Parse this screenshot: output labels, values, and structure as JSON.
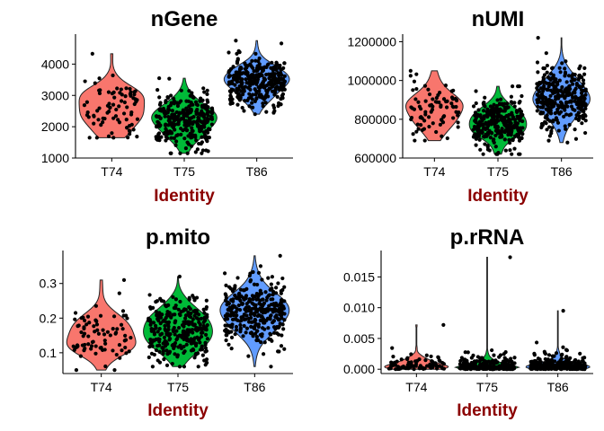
{
  "style": {
    "xlabel_color": "#8b0000",
    "point_color": "#000000"
  },
  "chart_data": [
    {
      "type": "violin",
      "title": "nGene",
      "xlabel": "Identity",
      "ylabel": "",
      "categories": [
        "T74",
        "T75",
        "T86"
      ],
      "colors": [
        "#f8766d",
        "#00ba38",
        "#619cff"
      ],
      "yticks": [
        1000,
        2000,
        3000,
        4000
      ],
      "ytick_labels": [
        "1000",
        "2000",
        "3000",
        "4000"
      ],
      "ylim": [
        1000,
        4900
      ],
      "groups": [
        {
          "name": "T74",
          "n": 80,
          "center": 2600,
          "sd": 500,
          "min": 1650,
          "max": 4330
        },
        {
          "name": "T75",
          "n": 300,
          "center": 2200,
          "sd": 450,
          "min": 1150,
          "max": 3550
        },
        {
          "name": "T86",
          "n": 320,
          "center": 3450,
          "sd": 400,
          "min": 2400,
          "max": 4750
        }
      ]
    },
    {
      "type": "violin",
      "title": "nUMI",
      "xlabel": "Identity",
      "ylabel": "",
      "categories": [
        "T74",
        "T75",
        "T86"
      ],
      "colors": [
        "#f8766d",
        "#00ba38",
        "#619cff"
      ],
      "yticks": [
        600000,
        800000,
        1000000,
        1200000
      ],
      "ytick_labels": [
        "600000",
        "800000",
        "1000000",
        "1200000"
      ],
      "ylim": [
        600000,
        1230000
      ],
      "groups": [
        {
          "name": "T74",
          "n": 80,
          "center": 840000,
          "sd": 80000,
          "min": 690000,
          "max": 1050000
        },
        {
          "name": "T75",
          "n": 300,
          "center": 780000,
          "sd": 65000,
          "min": 620000,
          "max": 970000
        },
        {
          "name": "T86",
          "n": 320,
          "center": 920000,
          "sd": 85000,
          "min": 680000,
          "max": 1220000
        }
      ]
    },
    {
      "type": "violin",
      "title": "p.mito",
      "xlabel": "Identity",
      "ylabel": "",
      "categories": [
        "T74",
        "T75",
        "T86"
      ],
      "colors": [
        "#f8766d",
        "#00ba38",
        "#619cff"
      ],
      "yticks": [
        0.1,
        0.2,
        0.3
      ],
      "ytick_labels": [
        "0.1",
        "0.2",
        "0.3"
      ],
      "ylim": [
        0.04,
        0.39
      ],
      "groups": [
        {
          "name": "T74",
          "n": 80,
          "center": 0.16,
          "sd": 0.05,
          "min": 0.05,
          "max": 0.31
        },
        {
          "name": "T75",
          "n": 300,
          "center": 0.165,
          "sd": 0.045,
          "min": 0.06,
          "max": 0.32
        },
        {
          "name": "T86",
          "n": 320,
          "center": 0.22,
          "sd": 0.05,
          "min": 0.06,
          "max": 0.38
        }
      ]
    },
    {
      "type": "violin",
      "title": "p.rRNA",
      "xlabel": "Identity",
      "ylabel": "",
      "categories": [
        "T74",
        "T75",
        "T86"
      ],
      "colors": [
        "#f8766d",
        "#00ba38",
        "#619cff"
      ],
      "yticks": [
        0.0,
        0.005,
        0.01,
        0.015
      ],
      "ytick_labels": [
        "0.000",
        "0.005",
        "0.010",
        "0.015"
      ],
      "ylim": [
        -0.0007,
        0.019
      ],
      "groups": [
        {
          "name": "T74",
          "n": 80,
          "center": 0.0008,
          "sd": 0.0012,
          "min": 0,
          "max": 0.0072
        },
        {
          "name": "T75",
          "n": 300,
          "center": 0.0008,
          "sd": 0.0011,
          "min": 0,
          "max": 0.0182
        },
        {
          "name": "T86",
          "n": 320,
          "center": 0.0009,
          "sd": 0.0013,
          "min": 0,
          "max": 0.0095
        }
      ]
    }
  ]
}
